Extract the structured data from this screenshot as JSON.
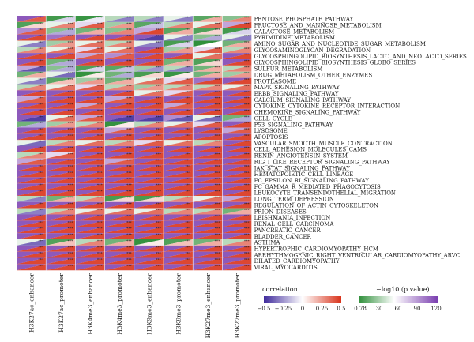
{
  "chart_data": {
    "type": "heatmap",
    "title": "",
    "columns": [
      "H3K27ac_enhancer",
      "H3K27ac_promoter",
      "H3K4me3_enhancer",
      "H3K4me3_promoter",
      "H3K9me3_enhancer",
      "H3K9me3_promoter",
      "H3K27me3_enhancer",
      "H3K27me3_promoter"
    ],
    "rows": [
      "PENTOSE_PHOSPHATE_PATHWAY",
      "FRUCTOSE_AND_MANNOSE_METABOLISM",
      "GALACTOSE_METABOLISM",
      "PYRIMIDINE_METABOLISM",
      "AMINO_SUGAR_AND_NUCLEOTIDE_SUGAR_METABOLISM",
      "GLYCOSAMINOGLYCAN_DEGRADATION",
      "GLYCOSPHINGOLIPID_BIOSYNTHESIS_LACTO_AND_NEOLACTO_SERIES",
      "GLYCOSPHINGOLIPID_BIOSYNTHESIS_GLOBO_SERIES",
      "SULFUR_METABOLISM",
      "DRUG_METABOLISM_OTHER_ENZYMES",
      "PROTEASOME",
      "MAPK_SIGNALING_PATHWAY",
      "ERBB_SIGNALING_PATHWAY",
      "CALCIUM_SIGNALING_PATHWAY",
      "CYTOKINE_CYTOKINE_RECEPTOR_INTERACTION",
      "CHEMOKINE_SIGNALING_PATHWAY",
      "CELL_CYCLE",
      "P53_SIGNALING_PATHWAY",
      "LYSOSOME",
      "APOPTOSIS",
      "VASCULAR_SMOOTH_MUSCLE_CONTRACTION",
      "CELL_ADHESION_MOLECULES_CAMS",
      "RENIN_ANGIOTENSIN_SYSTEM",
      "RIG_I_LIKE_RECEPTOR_SIGNALING_PATHWAY",
      "JAK_STAT_SIGNALING_PATHWAY",
      "HEMATOPOIETIC_CELL_LINEAGE",
      "FC_EPSILON_RI_SIGNALING_PATHWAY",
      "FC_GAMMA_R_MEDIATED_PHAGOCYTOSIS",
      "LEUKOCYTE_TRANSENDOTHELIAL_MIGRATION",
      "LONG_TERM_DEPRESSION",
      "REGULATION_OF_ACTIN_CYTOSKELETON",
      "PRION_DISEASES",
      "LEISHMANIA_INFECTION",
      "RENAL_CELL_CARCINOMA",
      "PANCREATIC_CANCER",
      "BLADDER_CANCER",
      "ASTHMA",
      "HYPERTROPHIC_CARDIOMYOPATHY_HCM",
      "ARRHYTHMOGENIC_RIGHT_VENTRICULAR_CARDIOMYOPATHY_ARVC",
      "DILATED_CARDIOMYOPATHY",
      "VIRAL_MYOCARDITIS"
    ],
    "correlation": [
      [
        0.4,
        -0.1,
        -0.05,
        -0.3,
        -0.3,
        -0.3,
        0.2,
        0.3
      ],
      [
        0.1,
        0.3,
        0.4,
        0.25,
        -0.15,
        0.3,
        0.35,
        0.45
      ],
      [
        0.4,
        -0.2,
        0.2,
        0.3,
        0.45,
        0.2,
        0.1,
        -0.1
      ],
      [
        0.45,
        0.4,
        0.45,
        0.45,
        -0.45,
        -0.3,
        -0.2,
        -0.3
      ],
      [
        -0.3,
        0.25,
        0.35,
        0.3,
        -0.3,
        -0.1,
        0.0,
        0.2
      ],
      [
        0.3,
        0.35,
        0.4,
        0.35,
        0.45,
        0.25,
        0.4,
        0.3
      ],
      [
        0.45,
        0.45,
        0.4,
        0.4,
        0.45,
        0.45,
        0.35,
        0.45
      ],
      [
        0.45,
        -0.2,
        0.45,
        0.45,
        0.45,
        0.2,
        0.1,
        0.45
      ],
      [
        -0.4,
        -0.2,
        -0.1,
        -0.15,
        -0.25,
        -0.3,
        0.2,
        0.3
      ],
      [
        0.2,
        -0.35,
        0.05,
        -0.2,
        0.1,
        0.05,
        0.2,
        0.25
      ],
      [
        -0.3,
        0.15,
        0.25,
        0.2,
        0.35,
        0.4,
        0.45,
        0.45
      ],
      [
        0.3,
        0.35,
        0.4,
        0.3,
        0.25,
        0.3,
        0.3,
        0.35
      ],
      [
        0.45,
        0.45,
        0.45,
        0.45,
        0.35,
        0.4,
        0.45,
        0.45
      ],
      [
        0.4,
        0.45,
        0.45,
        0.4,
        0.45,
        0.45,
        0.45,
        0.45
      ],
      [
        0.45,
        0.45,
        0.4,
        0.45,
        0.45,
        0.4,
        0.45,
        0.45
      ],
      [
        0.45,
        0.45,
        0.45,
        0.45,
        0.45,
        0.45,
        0.45,
        0.45
      ],
      [
        -0.45,
        0.35,
        0.4,
        -0.45,
        -0.45,
        -0.4,
        -0.35,
        -0.2
      ],
      [
        -0.2,
        0.25,
        0.3,
        0.05,
        0.3,
        0.35,
        0.4,
        0.45
      ],
      [
        0.45,
        0.45,
        0.45,
        0.4,
        0.45,
        0.45,
        0.45,
        0.4
      ],
      [
        0.45,
        0.45,
        0.45,
        0.45,
        0.45,
        0.45,
        0.45,
        0.45
      ],
      [
        -0.35,
        0.3,
        0.35,
        0.3,
        0.4,
        0.35,
        0.3,
        0.45
      ],
      [
        0.45,
        0.45,
        0.45,
        0.45,
        0.45,
        0.45,
        0.45,
        0.45
      ],
      [
        0.3,
        0.4,
        0.45,
        0.45,
        0.45,
        0.45,
        0.45,
        0.45
      ],
      [
        0.4,
        0.45,
        0.45,
        0.4,
        0.45,
        0.45,
        0.45,
        0.45
      ],
      [
        0.45,
        0.45,
        0.45,
        0.45,
        0.45,
        0.45,
        0.45,
        0.45
      ],
      [
        0.45,
        0.45,
        0.45,
        0.45,
        0.45,
        0.45,
        0.45,
        0.45
      ],
      [
        0.45,
        0.45,
        0.45,
        0.45,
        0.45,
        0.45,
        0.45,
        0.45
      ],
      [
        0.45,
        0.45,
        0.45,
        0.45,
        0.45,
        0.45,
        0.45,
        0.45
      ],
      [
        0.45,
        0.45,
        0.45,
        0.45,
        0.45,
        0.45,
        0.45,
        0.45
      ],
      [
        -0.3,
        0.2,
        0.3,
        0.1,
        0.1,
        0.3,
        0.35,
        0.4
      ],
      [
        0.45,
        0.45,
        0.45,
        0.45,
        0.45,
        0.45,
        0.45,
        0.45
      ],
      [
        -0.3,
        0.3,
        0.35,
        0.35,
        0.35,
        0.3,
        0.3,
        0.2
      ],
      [
        0.45,
        0.45,
        0.45,
        0.45,
        0.45,
        0.45,
        0.45,
        0.45
      ],
      [
        0.45,
        0.45,
        0.45,
        0.45,
        0.45,
        0.45,
        0.45,
        0.45
      ],
      [
        0.45,
        0.45,
        0.45,
        0.45,
        0.45,
        0.45,
        0.45,
        0.45
      ],
      [
        0.45,
        0.45,
        0.45,
        0.45,
        0.45,
        0.45,
        0.45,
        0.45
      ],
      [
        -0.35,
        0.15,
        0.3,
        0.2,
        0.05,
        0.15,
        0.2,
        0.3
      ],
      [
        0.45,
        0.45,
        0.45,
        0.45,
        0.45,
        0.45,
        0.45,
        0.45
      ],
      [
        0.45,
        0.45,
        0.45,
        0.45,
        0.45,
        0.45,
        0.45,
        0.45
      ],
      [
        0.45,
        0.45,
        0.45,
        0.45,
        0.45,
        0.45,
        0.45,
        0.45
      ],
      [
        0.45,
        0.45,
        0.45,
        0.45,
        0.45,
        0.45,
        0.45,
        0.45
      ]
    ],
    "neg_log10_p": [
      [
        110,
        5,
        3,
        30,
        30,
        40,
        10,
        20
      ],
      [
        8,
        40,
        60,
        25,
        10,
        30,
        40,
        80
      ],
      [
        90,
        20,
        15,
        20,
        80,
        10,
        8,
        5
      ],
      [
        110,
        100,
        110,
        110,
        110,
        40,
        20,
        40
      ],
      [
        40,
        25,
        40,
        30,
        40,
        6,
        1,
        15
      ],
      [
        30,
        40,
        60,
        40,
        110,
        25,
        60,
        30
      ],
      [
        110,
        110,
        80,
        90,
        110,
        110,
        40,
        110
      ],
      [
        110,
        15,
        110,
        110,
        110,
        15,
        8,
        110
      ],
      [
        80,
        20,
        8,
        10,
        25,
        30,
        15,
        30
      ],
      [
        15,
        40,
        2,
        15,
        6,
        3,
        15,
        25
      ],
      [
        40,
        10,
        25,
        15,
        40,
        60,
        100,
        110
      ],
      [
        30,
        40,
        60,
        30,
        25,
        30,
        30,
        40
      ],
      [
        110,
        110,
        110,
        110,
        40,
        60,
        110,
        110
      ],
      [
        80,
        110,
        110,
        80,
        110,
        110,
        110,
        110
      ],
      [
        110,
        110,
        80,
        110,
        110,
        80,
        110,
        110
      ],
      [
        110,
        110,
        110,
        110,
        110,
        110,
        110,
        110
      ],
      [
        110,
        40,
        80,
        110,
        110,
        90,
        40,
        15
      ],
      [
        15,
        25,
        30,
        2,
        30,
        40,
        60,
        110
      ],
      [
        110,
        110,
        110,
        80,
        110,
        110,
        110,
        80
      ],
      [
        110,
        110,
        110,
        110,
        110,
        110,
        110,
        110
      ],
      [
        40,
        30,
        40,
        30,
        60,
        40,
        30,
        110
      ],
      [
        110,
        110,
        110,
        110,
        110,
        110,
        110,
        110
      ],
      [
        30,
        60,
        110,
        110,
        110,
        110,
        110,
        110
      ],
      [
        80,
        110,
        110,
        80,
        110,
        110,
        110,
        110
      ],
      [
        110,
        110,
        110,
        110,
        110,
        110,
        110,
        110
      ],
      [
        110,
        110,
        110,
        110,
        110,
        110,
        110,
        110
      ],
      [
        110,
        110,
        110,
        110,
        110,
        110,
        110,
        110
      ],
      [
        110,
        110,
        110,
        110,
        110,
        110,
        110,
        110
      ],
      [
        110,
        110,
        110,
        110,
        110,
        110,
        110,
        110
      ],
      [
        30,
        15,
        30,
        6,
        6,
        30,
        40,
        80
      ],
      [
        110,
        110,
        110,
        110,
        110,
        110,
        110,
        110
      ],
      [
        30,
        30,
        40,
        40,
        40,
        30,
        30,
        15
      ],
      [
        110,
        110,
        110,
        110,
        110,
        110,
        110,
        110
      ],
      [
        110,
        110,
        110,
        110,
        110,
        110,
        110,
        110
      ],
      [
        110,
        110,
        110,
        110,
        110,
        110,
        110,
        110
      ],
      [
        110,
        110,
        110,
        110,
        110,
        110,
        110,
        110
      ],
      [
        40,
        8,
        30,
        15,
        2,
        8,
        15,
        30
      ],
      [
        110,
        110,
        110,
        110,
        110,
        110,
        110,
        110
      ],
      [
        110,
        110,
        110,
        110,
        110,
        110,
        110,
        110
      ],
      [
        110,
        110,
        110,
        110,
        110,
        110,
        110,
        110
      ],
      [
        110,
        110,
        110,
        110,
        110,
        110,
        110,
        110
      ]
    ],
    "significance_label": "***",
    "legend": {
      "correlation": {
        "title": "correlation",
        "ticks": [
          "−0.5",
          "−0.25",
          "0",
          "0.25",
          "0.5"
        ],
        "range": [
          -0.5,
          0.5
        ],
        "colors": [
          "#3f2a9c",
          "#ffffff",
          "#d9321a"
        ]
      },
      "pvalue": {
        "title": "−log10 (p value)",
        "ticks": [
          "0.78",
          "30",
          "60",
          "90",
          "120"
        ],
        "range": [
          0.78,
          120
        ],
        "colors": [
          "#2f8f3a",
          "#ffffff",
          "#7b3fb0"
        ]
      }
    }
  }
}
